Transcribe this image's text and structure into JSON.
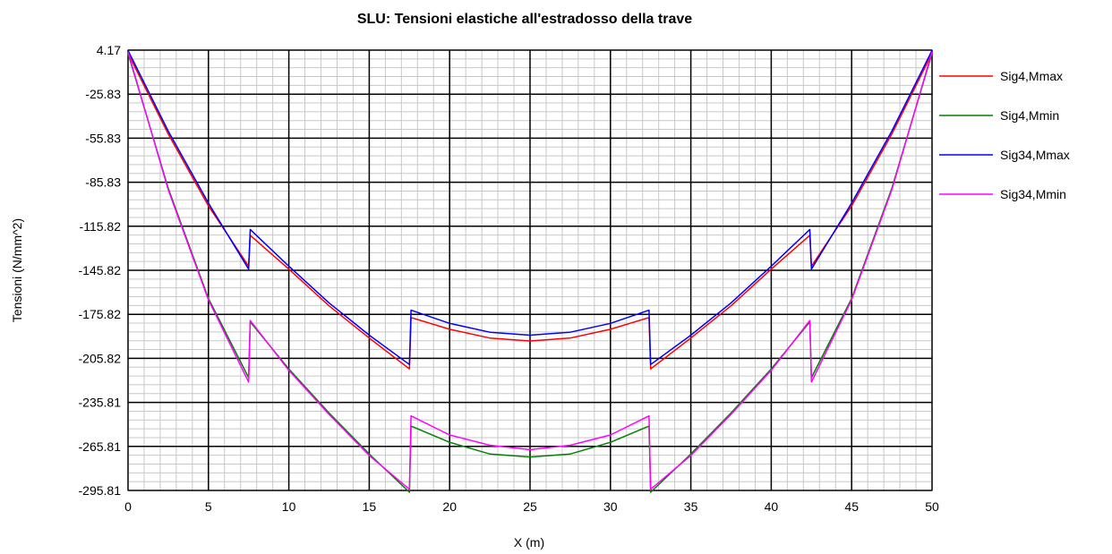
{
  "chart_data": {
    "type": "line",
    "title": "SLU: Tensioni elastiche all'estradosso della trave",
    "xlabel": "X (m)",
    "ylabel": "Tensioni (N/mm^2)",
    "xlim": [
      0,
      50
    ],
    "ylim": [
      -295.81,
      4.17
    ],
    "x_ticks": [
      "0",
      "5",
      "10",
      "15",
      "20",
      "25",
      "30",
      "35",
      "40",
      "45",
      "50"
    ],
    "y_ticks": [
      "4.17",
      "-25.83",
      "-55.83",
      "-85.83",
      "-115.82",
      "-145.82",
      "-175.82",
      "-205.82",
      "-235.81",
      "-265.81",
      "-295.81"
    ],
    "grid": true,
    "minor_grid": true,
    "legend_position": "right",
    "series": [
      {
        "name": "Sig4,Mmax",
        "color": "#ff0000",
        "x": [
          0,
          2.5,
          5,
          7.5,
          7.6,
          10,
          12.5,
          15,
          17.5,
          17.6,
          20,
          22.5,
          25,
          27.5,
          30,
          32.4,
          32.5,
          35,
          37.5,
          40,
          42.4,
          42.5,
          45,
          47.5,
          50
        ],
        "y": [
          2,
          -53,
          -102,
          -143,
          -122,
          -145,
          -170,
          -192,
          -213,
          -178,
          -186,
          -192,
          -194,
          -192,
          -186,
          -178,
          -213,
          -192,
          -170,
          -145,
          -122,
          -143,
          -102,
          -53,
          2
        ]
      },
      {
        "name": "Sig4,Mmin",
        "color": "#008000",
        "x": [
          0,
          2.5,
          5,
          7.5,
          7.6,
          10,
          12.5,
          15,
          17.5,
          17.6,
          20,
          22.5,
          25,
          27.5,
          30,
          32.4,
          32.5,
          35,
          37.5,
          40,
          42.4,
          42.5,
          45,
          47.5,
          50
        ],
        "y": [
          2,
          -90,
          -165,
          -219,
          -181,
          -213,
          -243,
          -271,
          -297,
          -252,
          -263,
          -271,
          -273,
          -271,
          -263,
          -252,
          -297,
          -271,
          -243,
          -213,
          -181,
          -219,
          -165,
          -90,
          2
        ]
      },
      {
        "name": "Sig34,Mmax",
        "color": "#0000ff",
        "x": [
          0,
          2.5,
          5,
          7.5,
          7.6,
          10,
          12.5,
          15,
          17.5,
          17.6,
          20,
          22.5,
          25,
          27.5,
          30,
          32.4,
          32.5,
          35,
          37.5,
          40,
          42.4,
          42.5,
          45,
          47.5,
          50
        ],
        "y": [
          4,
          -51,
          -100,
          -145,
          -118,
          -143,
          -168,
          -190,
          -210,
          -173,
          -182,
          -188,
          -190,
          -188,
          -182,
          -173,
          -210,
          -190,
          -168,
          -143,
          -118,
          -145,
          -100,
          -51,
          4
        ]
      },
      {
        "name": "Sig34,Mmin",
        "color": "#ff00ff",
        "x": [
          0,
          2.5,
          5,
          7.5,
          7.6,
          10,
          12.5,
          15,
          17.5,
          17.6,
          20,
          22.5,
          25,
          27.5,
          30,
          32.4,
          32.5,
          35,
          37.5,
          40,
          42.4,
          42.5,
          45,
          47.5,
          50
        ],
        "y": [
          3,
          -91,
          -166,
          -222,
          -180,
          -214,
          -244,
          -272,
          -295,
          -245,
          -258,
          -265,
          -268,
          -265,
          -258,
          -245,
          -295,
          -272,
          -244,
          -214,
          -180,
          -222,
          -166,
          -91,
          3
        ]
      }
    ]
  }
}
